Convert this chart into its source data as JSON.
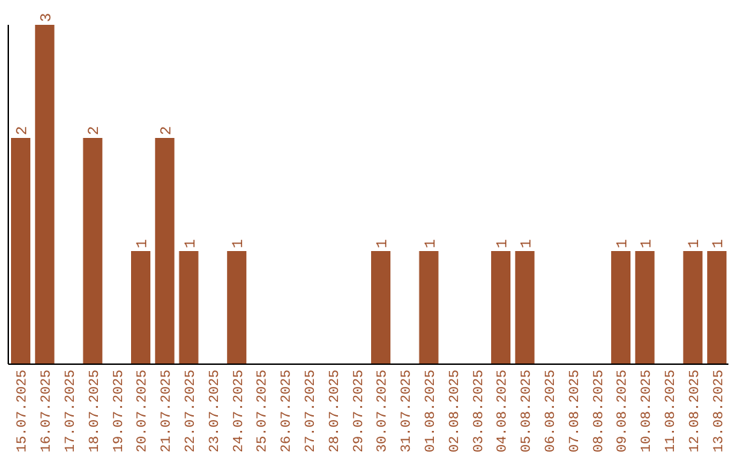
{
  "chart_data": {
    "type": "bar",
    "categories": [
      "15.07.2025",
      "16.07.2025",
      "17.07.2025",
      "18.07.2025",
      "19.07.2025",
      "20.07.2025",
      "21.07.2025",
      "22.07.2025",
      "23.07.2025",
      "24.07.2025",
      "25.07.2025",
      "26.07.2025",
      "27.07.2025",
      "28.07.2025",
      "29.07.2025",
      "30.07.2025",
      "31.07.2025",
      "01.08.2025",
      "02.08.2025",
      "03.08.2025",
      "04.08.2025",
      "05.08.2025",
      "06.08.2025",
      "07.08.2025",
      "08.08.2025",
      "09.08.2025",
      "10.08.2025",
      "11.08.2025",
      "12.08.2025",
      "13.08.2025"
    ],
    "values": [
      2,
      3,
      0,
      2,
      0,
      1,
      2,
      1,
      0,
      1,
      0,
      0,
      0,
      0,
      0,
      1,
      0,
      1,
      0,
      0,
      1,
      1,
      0,
      0,
      0,
      1,
      1,
      0,
      1,
      1
    ],
    "value_labels": [
      "2",
      "3",
      null,
      "2",
      null,
      "1",
      "2",
      "1",
      null,
      "1",
      null,
      null,
      null,
      null,
      null,
      "1",
      null,
      "1",
      null,
      null,
      "1",
      "1",
      null,
      null,
      null,
      "1",
      "1",
      null,
      "1",
      "1"
    ],
    "color": "#a0522d",
    "ylim": [
      0,
      3
    ],
    "tick_labels": "x"
  }
}
